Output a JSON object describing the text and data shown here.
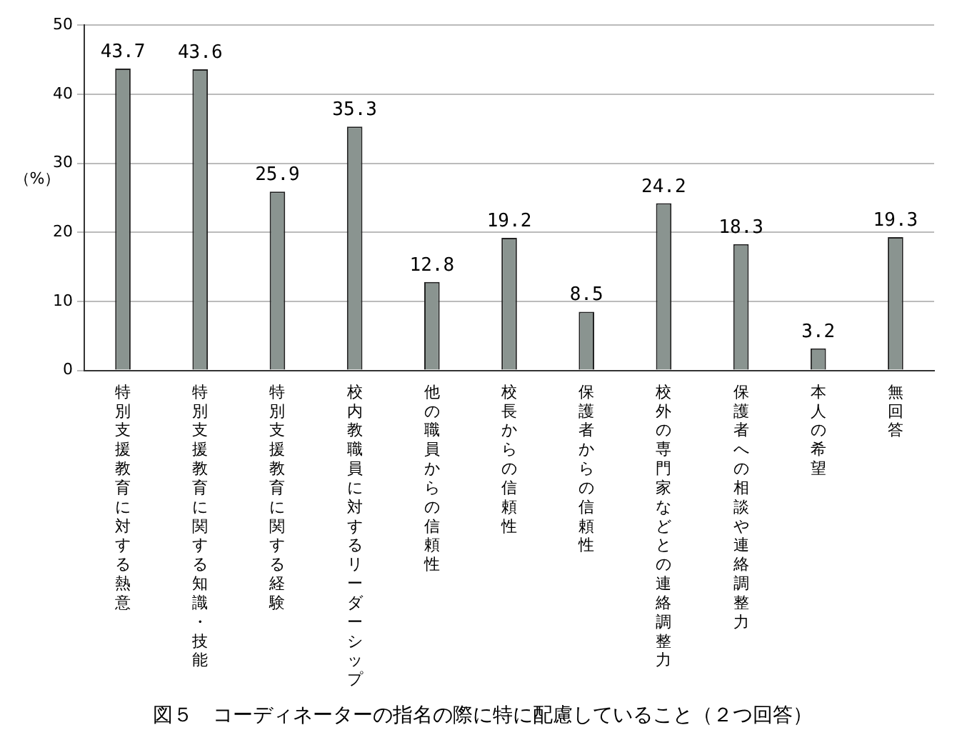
{
  "chart_data": {
    "type": "bar",
    "ylabel": "（%）",
    "categories": [
      "特別支援教育に対する熱意",
      "特別支援教育に関する知識・技能",
      "特別支援教育に関する経験",
      "校内教職員に対するリーダーシップ",
      "他の職員からの信頼性",
      "校長からの信頼性",
      "保護者からの信頼性",
      "校外の専門家などとの連絡調整力",
      "保護者への相談や連絡調整力",
      "本人の希望",
      "無回答"
    ],
    "values": [
      43.7,
      43.6,
      25.9,
      35.3,
      12.8,
      19.2,
      8.5,
      24.2,
      18.3,
      3.2,
      19.3
    ],
    "color": "#8a9490",
    "ylim": [
      0,
      50
    ],
    "yticks": [
      0,
      10,
      20,
      30,
      40,
      50
    ],
    "grid": "y",
    "data_labels": true,
    "annotations": [
      "図５　コーディネーターの指名の際に特に配慮していること（２つ回答）"
    ]
  }
}
